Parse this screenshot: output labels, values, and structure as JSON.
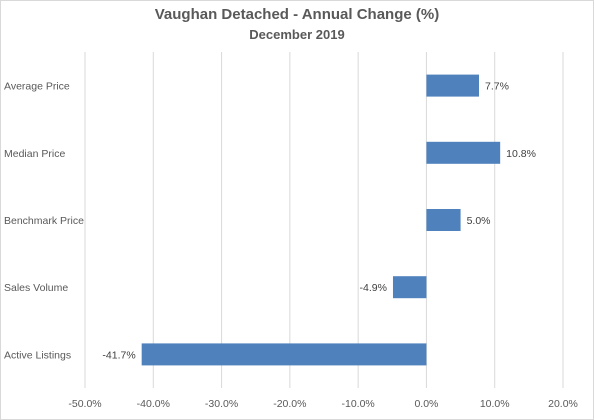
{
  "chart_data": {
    "type": "bar",
    "orientation": "horizontal",
    "title": "Vaughan Detached - Annual Change (%)",
    "subtitle": "December 2019",
    "categories": [
      "Average Price",
      "Median Price",
      "Benchmark Price",
      "Sales Volume",
      "Active Listings"
    ],
    "values": [
      7.7,
      10.8,
      5.0,
      -4.9,
      -41.7
    ],
    "data_labels": [
      "7.7%",
      "10.8%",
      "5.0%",
      "-4.9%",
      "-41.7%"
    ],
    "xlim": [
      -50,
      20
    ],
    "x_ticks": [
      -50,
      -40,
      -30,
      -20,
      -10,
      0,
      10,
      20
    ],
    "x_tick_labels": [
      "-50.0%",
      "-40.0%",
      "-30.0%",
      "-20.0%",
      "-10.0%",
      "0.0%",
      "10.0%",
      "20.0%"
    ],
    "xlabel": "",
    "ylabel": "",
    "grid": "vertical",
    "legend": "none",
    "bar_color": "#4f81bd",
    "grid_color": "#d9d9d9"
  }
}
